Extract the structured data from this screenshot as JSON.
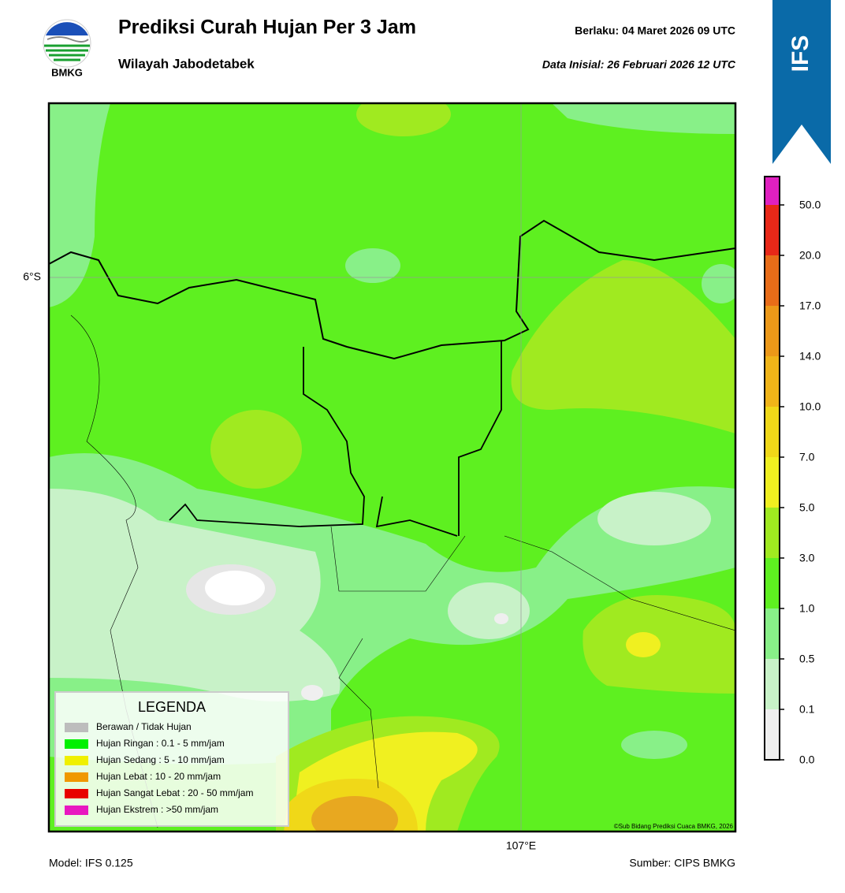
{
  "header": {
    "logo_text": "BMKG",
    "title": "Prediksi Curah Hujan Per 3 Jam",
    "subtitle": "Wilayah Jabodetabek",
    "valid": "Berlaku:  04 Maret 2026 09 UTC",
    "init": "Data Inisial:  26 Februari 2026 12 UTC",
    "badge": "IFS"
  },
  "map": {
    "lat_label": "6°S",
    "lon_label": "107°E",
    "credit": "©Sub Bidang Prediksi Cuaca BMKG, 2026"
  },
  "legend": {
    "title": "LEGENDA",
    "items": [
      {
        "label": "Berawan / Tidak Hujan",
        "color": "#bdbdbd"
      },
      {
        "label": "Hujan Ringan : 0.1 - 5 mm/jam",
        "color": "#00f000"
      },
      {
        "label": "Hujan Sedang : 5 - 10 mm/jam",
        "color": "#f0f000"
      },
      {
        "label": "Hujan Lebat : 10 - 20 mm/jam",
        "color": "#f09800"
      },
      {
        "label": "Hujan Sangat Lebat : 20 - 50 mm/jam",
        "color": "#e80000"
      },
      {
        "label": "Hujan Ekstrem : >50 mm/jam",
        "color": "#e818c0"
      }
    ]
  },
  "colorbar": {
    "ticks": [
      "0.0",
      "0.1",
      "0.5",
      "1.0",
      "3.0",
      "5.0",
      "7.0",
      "10.0",
      "14.0",
      "17.0",
      "20.0",
      "50.0"
    ],
    "colors": [
      "#efefef",
      "#c8f2c8",
      "#88f088",
      "#5ef020",
      "#a0ea20",
      "#f0f020",
      "#f0d818",
      "#f0b418",
      "#ec9818",
      "#e86c18",
      "#e82818",
      "#e020c0"
    ]
  },
  "footer": {
    "model": "Model: IFS 0.125",
    "source": "Sumber: CIPS BMKG"
  }
}
